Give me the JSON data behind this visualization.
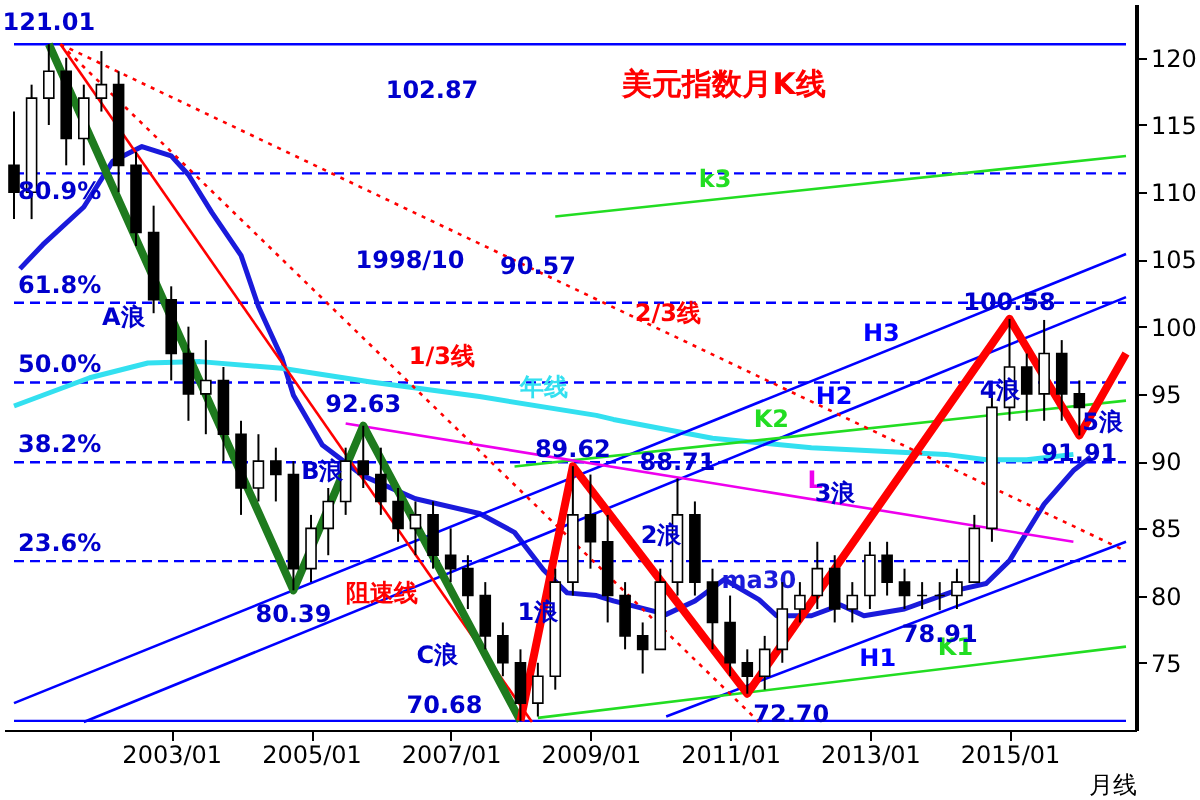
{
  "chart_data": {
    "type": "candlestick",
    "title": "美元指数月K线",
    "xlabel": "月线",
    "xlim": [
      "2000-10",
      "2016-09"
    ],
    "ylim": [
      70,
      124
    ],
    "xticks": [
      {
        "value": "2003-01",
        "label": "2003/01"
      },
      {
        "value": "2005-01",
        "label": "2005/01"
      },
      {
        "value": "2007-01",
        "label": "2007/01"
      },
      {
        "value": "2009-01",
        "label": "2009/01"
      },
      {
        "value": "2011-01",
        "label": "2011/01"
      },
      {
        "value": "2013-01",
        "label": "2013/01"
      },
      {
        "value": "2015-01",
        "label": "2015/01"
      }
    ],
    "yticks": [
      75,
      80,
      85,
      90,
      95,
      100,
      105,
      110,
      115,
      120
    ],
    "x": [
      "2000-10",
      "2001-01",
      "2001-04",
      "2001-07",
      "2001-10",
      "2002-01",
      "2002-04",
      "2002-07",
      "2002-10",
      "2003-01",
      "2003-04",
      "2003-07",
      "2003-10",
      "2004-01",
      "2004-04",
      "2004-07",
      "2004-10",
      "2005-01",
      "2005-04",
      "2005-07",
      "2005-10",
      "2006-01",
      "2006-04",
      "2006-07",
      "2006-10",
      "2007-01",
      "2007-04",
      "2007-07",
      "2007-10",
      "2008-01",
      "2008-04",
      "2008-07",
      "2008-10",
      "2009-01",
      "2009-04",
      "2009-07",
      "2009-10",
      "2010-01",
      "2010-04",
      "2010-07",
      "2010-10",
      "2011-01",
      "2011-04",
      "2011-07",
      "2011-10",
      "2012-01",
      "2012-04",
      "2012-07",
      "2012-10",
      "2013-01",
      "2013-04",
      "2013-07",
      "2013-10",
      "2014-01",
      "2014-04",
      "2014-07",
      "2014-10",
      "2015-01",
      "2015-04",
      "2015-07",
      "2015-10",
      "2016-01"
    ],
    "ohlc": [
      [
        112,
        116,
        108,
        110
      ],
      [
        110,
        118,
        108,
        117
      ],
      [
        117,
        121.01,
        115,
        119
      ],
      [
        119,
        120,
        112,
        114
      ],
      [
        114,
        118,
        112,
        117
      ],
      [
        117,
        120.5,
        116,
        118
      ],
      [
        118,
        119,
        110,
        112
      ],
      [
        112,
        113,
        106,
        107
      ],
      [
        107,
        109,
        101,
        102
      ],
      [
        102,
        103,
        96,
        98
      ],
      [
        98,
        100,
        93,
        95
      ],
      [
        95,
        99,
        92,
        96
      ],
      [
        96,
        97,
        90,
        92
      ],
      [
        92,
        93,
        86,
        88
      ],
      [
        88,
        92,
        87,
        90
      ],
      [
        90,
        91,
        87,
        89
      ],
      [
        89,
        90,
        80.39,
        82
      ],
      [
        82,
        86,
        81,
        85
      ],
      [
        85,
        88,
        83,
        87
      ],
      [
        87,
        91,
        86,
        90
      ],
      [
        90,
        92.63,
        88,
        89
      ],
      [
        89,
        91,
        86,
        87
      ],
      [
        87,
        88,
        84,
        85
      ],
      [
        85,
        87,
        83,
        86
      ],
      [
        86,
        87,
        82,
        83
      ],
      [
        83,
        85,
        81,
        82
      ],
      [
        82,
        83,
        79,
        80
      ],
      [
        80,
        81,
        76,
        77
      ],
      [
        77,
        78,
        74,
        75
      ],
      [
        75,
        76,
        70.68,
        72
      ],
      [
        72,
        75,
        71,
        74
      ],
      [
        74,
        82,
        73,
        81
      ],
      [
        81,
        89.62,
        80,
        86
      ],
      [
        86,
        89,
        82,
        84
      ],
      [
        84,
        86,
        78,
        80
      ],
      [
        80,
        81,
        76,
        77
      ],
      [
        77,
        78,
        74.2,
        76
      ],
      [
        76,
        82,
        76,
        81
      ],
      [
        81,
        88.71,
        80,
        86
      ],
      [
        86,
        87,
        80,
        81
      ],
      [
        81,
        82,
        76,
        78
      ],
      [
        78,
        80,
        74,
        75
      ],
      [
        75,
        76,
        72.7,
        74
      ],
      [
        74,
        77,
        73,
        76
      ],
      [
        76,
        81,
        75,
        79
      ],
      [
        79,
        81,
        78,
        80
      ],
      [
        80,
        84,
        79,
        82
      ],
      [
        82,
        83,
        78,
        79
      ],
      [
        79,
        81,
        78,
        80
      ],
      [
        80,
        84,
        79,
        83
      ],
      [
        83,
        84,
        80,
        81
      ],
      [
        81,
        82,
        79,
        80
      ],
      [
        80,
        81,
        79,
        80
      ],
      [
        80,
        81,
        78.91,
        80
      ],
      [
        80,
        82,
        79,
        81
      ],
      [
        81,
        86,
        81,
        85
      ],
      [
        85,
        95,
        84,
        94
      ],
      [
        94,
        100.58,
        93,
        97
      ],
      [
        97,
        98,
        93,
        95
      ],
      [
        95,
        100.5,
        93,
        98
      ],
      [
        98,
        99,
        93,
        95
      ],
      [
        95,
        96,
        91.91,
        94
      ]
    ],
    "series": [
      {
        "type": "line",
        "name": "ma30",
        "color": "#1a1adb",
        "x": [
          "2000-11",
          "2001-03",
          "2001-10",
          "2002-03",
          "2002-08",
          "2003-01",
          "2003-04",
          "2003-08",
          "2004-01",
          "2004-04",
          "2004-08",
          "2004-10",
          "2005-03",
          "2005-10",
          "2006-07",
          "2007-06",
          "2007-12",
          "2008-05",
          "2008-09",
          "2009-02",
          "2009-05",
          "2010-02",
          "2010-07",
          "2010-12",
          "2011-06",
          "2011-09",
          "2012-03",
          "2012-08",
          "2012-12",
          "2013-07",
          "2014-04",
          "2014-09",
          "2015-01",
          "2015-04",
          "2015-07",
          "2015-12",
          "2016-03"
        ],
        "values": [
          104.3,
          106.1,
          108.9,
          112.3,
          113.4,
          112.7,
          111.3,
          108.5,
          105.3,
          101.5,
          97.7,
          94.9,
          91.2,
          88.9,
          87.2,
          86.1,
          84.7,
          81.9,
          80.2,
          80.0,
          79.6,
          78.6,
          79.6,
          81.2,
          79.7,
          78.5,
          78.5,
          79.3,
          78.5,
          79.0,
          80.4,
          80.9,
          82.6,
          84.7,
          86.8,
          89.3,
          90.3
        ]
      },
      {
        "type": "line",
        "name": "年线",
        "color": "#33e0f0",
        "x": [
          "2000-10",
          "2001-11",
          "2002-09",
          "2003-06",
          "2004-08",
          "2005-11",
          "2007-06",
          "2009-02",
          "2009-05",
          "2010-10",
          "2012-03",
          "2014-02",
          "2014-09",
          "2015-04",
          "2015-12"
        ],
        "values": [
          94.1,
          96.2,
          97.3,
          97.4,
          96.9,
          95.9,
          94.8,
          93.4,
          93.1,
          91.7,
          91.0,
          90.5,
          90.1,
          90.1,
          90.5
        ]
      },
      {
        "type": "line",
        "name": "H1",
        "color": "#0000ff",
        "x": [
          "2010-02",
          "2016-09"
        ],
        "values": [
          71.0,
          84.0
        ]
      },
      {
        "type": "line",
        "name": "H2",
        "color": "#0000ff",
        "x": [
          "2001-10",
          "2016-09"
        ],
        "values": [
          70.6,
          102.2
        ]
      },
      {
        "type": "line",
        "name": "H3",
        "color": "#0000ff",
        "x": [
          "2000-10",
          "2016-09"
        ],
        "values": [
          72.0,
          105.4
        ]
      },
      {
        "type": "line",
        "name": "K1",
        "color": "#22dd22",
        "x": [
          "2008-04",
          "2016-09"
        ],
        "values": [
          70.9,
          76.2
        ]
      },
      {
        "type": "line",
        "name": "K2",
        "color": "#22dd22",
        "x": [
          "2007-12",
          "2016-09"
        ],
        "values": [
          89.6,
          94.5
        ]
      },
      {
        "type": "line",
        "name": "k3",
        "color": "#22dd22",
        "x": [
          "2008-07",
          "2016-09"
        ],
        "values": [
          108.2,
          112.7
        ]
      },
      {
        "type": "line",
        "name": "L",
        "color": "#ee00ee",
        "x": [
          "2005-07",
          "2015-12"
        ],
        "values": [
          92.8,
          84.0
        ]
      },
      {
        "type": "line",
        "name": "阻速线",
        "color": "#ff0000",
        "x": [
          "2001-06",
          "2008-03"
        ],
        "values": [
          121.0,
          70.6
        ]
      },
      {
        "type": "line",
        "name": "1/3线",
        "color": "#ff0000",
        "line_style": "dotted",
        "x": [
          "2001-06",
          "2011-06"
        ],
        "values": [
          121.0,
          70.6
        ]
      },
      {
        "type": "line",
        "name": "2/3线",
        "color": "#ff0000",
        "line_style": "dotted",
        "x": [
          "2001-06",
          "2016-09"
        ],
        "values": [
          121.0,
          83.3
        ]
      },
      {
        "type": "line",
        "color": "#1e7b1e",
        "x": [
          "2001-04",
          "2004-10",
          "2005-10",
          "2008-01"
        ],
        "values": [
          121.01,
          80.39,
          92.63,
          70.68
        ]
      },
      {
        "type": "line",
        "color": "#ff0000",
        "x": [
          "2008-01",
          "2008-10",
          "2011-04",
          "2015-01",
          "2016-01",
          "2016-09"
        ],
        "values": [
          70.68,
          89.62,
          72.7,
          100.58,
          91.91,
          98
        ]
      }
    ],
    "ref_lines": [
      {
        "axis": "y",
        "value": 121.01,
        "color": "#0000ff",
        "line_style": "solid"
      },
      {
        "axis": "y",
        "value": 111.4,
        "color": "#0000ff",
        "line_style": "dashed"
      },
      {
        "axis": "y",
        "value": 101.78,
        "color": "#0000ff",
        "line_style": "dashed"
      },
      {
        "axis": "y",
        "value": 95.85,
        "color": "#0000ff",
        "line_style": "dashed"
      },
      {
        "axis": "y",
        "value": 89.91,
        "color": "#0000ff",
        "line_style": "dashed"
      },
      {
        "axis": "y",
        "value": 82.56,
        "color": "#0000ff",
        "line_style": "dashed"
      },
      {
        "axis": "y",
        "value": 70.68,
        "color": "#0000ff",
        "line_style": "solid"
      }
    ],
    "annotations": [
      {
        "text": "121.01",
        "x": "2001-04",
        "y": 121.01
      },
      {
        "text": "80.9%",
        "x": "2000-10",
        "y": 111.4
      },
      {
        "text": "61.8%",
        "x": "2000-10",
        "y": 101.78
      },
      {
        "text": "50.0%",
        "x": "2000-10",
        "y": 95.85
      },
      {
        "text": "38.2%",
        "x": "2000-10",
        "y": 89.91
      },
      {
        "text": "23.6%",
        "x": "2000-10",
        "y": 82.56
      },
      "102.87",
      "1998/10",
      "90.57",
      {
        "text": "A浪",
        "x": "2003-01",
        "y": 100.7
      },
      {
        "text": "B浪",
        "x": "2005-03",
        "y": 89.3
      },
      {
        "text": "92.63",
        "x": "2005-10",
        "y": 92.63
      },
      {
        "text": "80.39",
        "x": "2004-10",
        "y": 80.39
      },
      {
        "text": "C浪",
        "x": "2007-07",
        "y": 75.55
      },
      {
        "text": "70.68",
        "x": "2008-01",
        "y": 70.68
      },
      {
        "text": "1浪",
        "x": "2008-04",
        "y": 78.8
      },
      {
        "text": "89.62",
        "x": "2008-10",
        "y": 90.9
      },
      {
        "text": "88.71",
        "x": "2010-04",
        "y": 89.9
      },
      {
        "text": "2浪",
        "x": "2009-07",
        "y": 84.5
      },
      {
        "text": "72.70",
        "x": "2011-04",
        "y": 72.7
      },
      {
        "text": "3浪",
        "x": "2013-04",
        "y": 87.6
      },
      {
        "text": "78.91",
        "x": "2014-01",
        "y": 78.91
      },
      {
        "text": "100.58",
        "x": "2015-01",
        "y": 101.8
      },
      {
        "text": "4浪",
        "x": "2015-07",
        "y": 96.2
      },
      {
        "text": "91.91",
        "x": "2016-01",
        "y": 90.6
      },
      {
        "text": "5浪",
        "x": "2016-05",
        "y": 94.96
      }
    ]
  }
}
